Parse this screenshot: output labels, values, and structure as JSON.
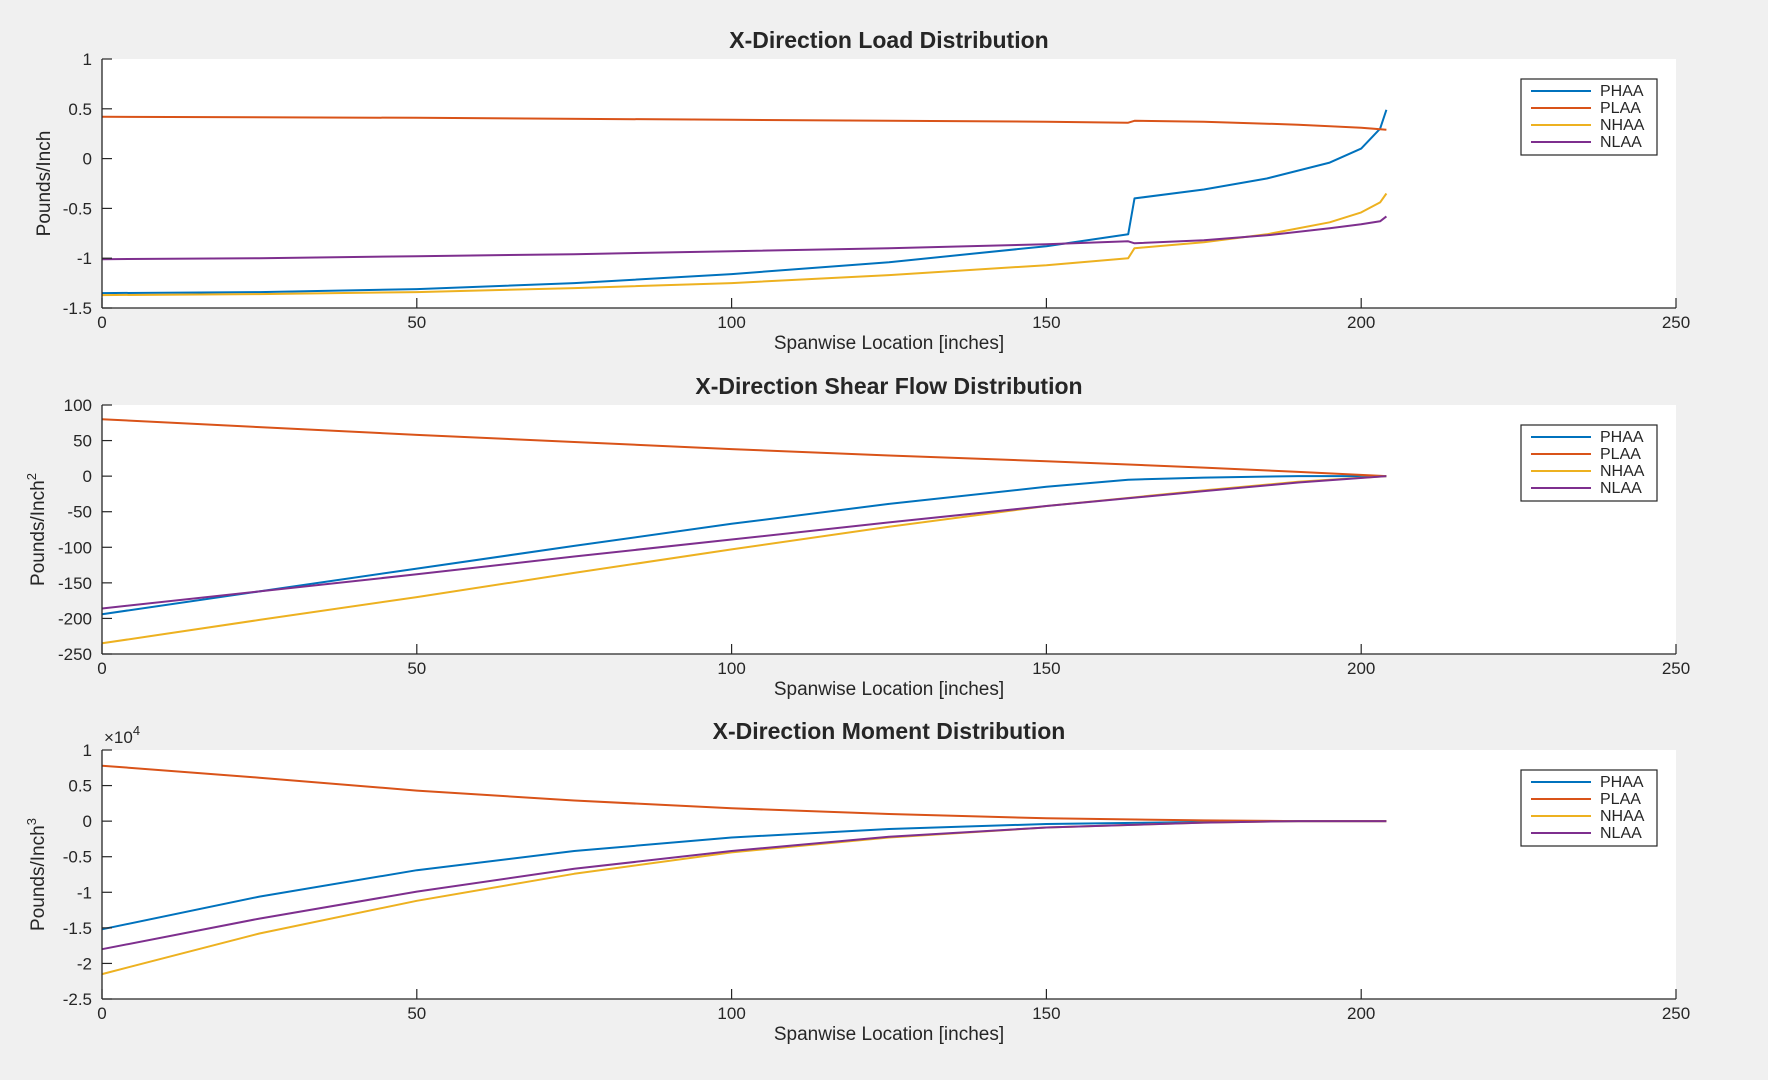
{
  "figure": {
    "background": "#f0f0f0"
  },
  "series_colors": {
    "PHAA": "#0072bd",
    "PLAA": "#d95319",
    "NHAA": "#edb120",
    "NLAA": "#7e2f8e"
  },
  "chart_data": [
    {
      "type": "line",
      "title": "X-Direction Load Distribution",
      "xlabel": "Spanwise Location [inches]",
      "ylabel": "Pounds/Inch",
      "ylabel_sup": "",
      "exponent_label": "",
      "xlim": [
        0,
        250
      ],
      "ylim": [
        -1.5,
        1
      ],
      "xticks": [
        0,
        50,
        100,
        150,
        200,
        250
      ],
      "xtick_labels": [
        "0",
        "50",
        "100",
        "150",
        "200",
        "250"
      ],
      "yticks": [
        -1.5,
        -1,
        -0.5,
        0,
        0.5,
        1
      ],
      "ytick_labels": [
        "-1.5",
        "-1",
        "-0.5",
        "0",
        "0.5",
        "1"
      ],
      "grid": false,
      "legend_position": "top-right",
      "series": [
        {
          "name": "PHAA",
          "x": [
            0,
            25,
            50,
            75,
            100,
            125,
            150,
            163,
            164,
            175,
            185,
            195,
            200,
            203,
            204
          ],
          "y": [
            -1.35,
            -1.34,
            -1.31,
            -1.25,
            -1.16,
            -1.04,
            -0.88,
            -0.76,
            -0.4,
            -0.31,
            -0.2,
            -0.04,
            0.1,
            0.3,
            0.49
          ]
        },
        {
          "name": "PLAA",
          "x": [
            0,
            50,
            100,
            150,
            163,
            164,
            175,
            190,
            200,
            204
          ],
          "y": [
            0.42,
            0.41,
            0.39,
            0.37,
            0.36,
            0.38,
            0.37,
            0.34,
            0.31,
            0.29
          ]
        },
        {
          "name": "NHAA",
          "x": [
            0,
            25,
            50,
            75,
            100,
            125,
            150,
            163,
            164,
            175,
            185,
            195,
            200,
            203,
            204
          ],
          "y": [
            -1.37,
            -1.36,
            -1.34,
            -1.3,
            -1.25,
            -1.17,
            -1.07,
            -1.0,
            -0.9,
            -0.84,
            -0.76,
            -0.64,
            -0.54,
            -0.44,
            -0.35
          ]
        },
        {
          "name": "NLAA",
          "x": [
            0,
            25,
            50,
            75,
            100,
            125,
            150,
            163,
            164,
            175,
            185,
            195,
            200,
            203,
            204
          ],
          "y": [
            -1.01,
            -1.0,
            -0.98,
            -0.96,
            -0.93,
            -0.9,
            -0.86,
            -0.83,
            -0.85,
            -0.82,
            -0.77,
            -0.7,
            -0.66,
            -0.63,
            -0.58
          ]
        }
      ]
    },
    {
      "type": "line",
      "title": "X-Direction Shear Flow Distribution",
      "xlabel": "Spanwise Location [inches]",
      "ylabel": "Pounds/Inch",
      "ylabel_sup": "2",
      "exponent_label": "",
      "xlim": [
        0,
        250
      ],
      "ylim": [
        -250,
        100
      ],
      "xticks": [
        0,
        50,
        100,
        150,
        200,
        250
      ],
      "xtick_labels": [
        "0",
        "50",
        "100",
        "150",
        "200",
        "250"
      ],
      "yticks": [
        -250,
        -200,
        -150,
        -100,
        -50,
        0,
        50,
        100
      ],
      "ytick_labels": [
        "-250",
        "-200",
        "-150",
        "-100",
        "-50",
        "0",
        "50",
        "100"
      ],
      "grid": false,
      "legend_position": "top-right",
      "series": [
        {
          "name": "PHAA",
          "x": [
            0,
            25,
            50,
            75,
            100,
            125,
            150,
            163,
            175,
            190,
            204
          ],
          "y": [
            -194,
            -162,
            -130,
            -98,
            -67,
            -39,
            -15,
            -5,
            -2,
            0,
            0
          ]
        },
        {
          "name": "PLAA",
          "x": [
            0,
            25,
            50,
            75,
            100,
            125,
            150,
            175,
            190,
            204
          ],
          "y": [
            80,
            69,
            58,
            48,
            38,
            29,
            21,
            12,
            6,
            0
          ]
        },
        {
          "name": "NHAA",
          "x": [
            0,
            25,
            50,
            75,
            100,
            125,
            150,
            175,
            190,
            204
          ],
          "y": [
            -235,
            -202,
            -170,
            -136,
            -103,
            -71,
            -42,
            -20,
            -8,
            0
          ]
        },
        {
          "name": "NLAA",
          "x": [
            0,
            25,
            50,
            75,
            100,
            125,
            150,
            175,
            190,
            204
          ],
          "y": [
            -186,
            -162,
            -138,
            -113,
            -89,
            -65,
            -42,
            -21,
            -9,
            0
          ]
        }
      ]
    },
    {
      "type": "line",
      "title": "X-Direction Moment Distribution",
      "xlabel": "Spanwise Location [inches]",
      "ylabel": "Pounds/Inch",
      "ylabel_sup": "3",
      "exponent_label": "×10",
      "exponent_sup": "4",
      "xlim": [
        0,
        250
      ],
      "ylim": [
        -2.5,
        1
      ],
      "xticks": [
        0,
        50,
        100,
        150,
        200,
        250
      ],
      "xtick_labels": [
        "0",
        "50",
        "100",
        "150",
        "200",
        "250"
      ],
      "yticks": [
        -2.5,
        -2,
        -1.5,
        -1,
        -0.5,
        0,
        0.5,
        1
      ],
      "ytick_labels": [
        "-2.5",
        "-2",
        "-1.5",
        "-1",
        "-0.5",
        "0",
        "0.5",
        "1"
      ],
      "grid": false,
      "legend_position": "top-right",
      "series": [
        {
          "name": "PHAA",
          "x": [
            0,
            25,
            50,
            75,
            100,
            125,
            150,
            175,
            190,
            204
          ],
          "y": [
            -1.52,
            -1.06,
            -0.69,
            -0.42,
            -0.23,
            -0.11,
            -0.04,
            -0.01,
            0,
            0
          ]
        },
        {
          "name": "PLAA",
          "x": [
            0,
            25,
            50,
            75,
            100,
            125,
            150,
            175,
            190,
            204
          ],
          "y": [
            0.78,
            0.61,
            0.43,
            0.29,
            0.18,
            0.1,
            0.04,
            0.01,
            0,
            0
          ]
        },
        {
          "name": "NHAA",
          "x": [
            0,
            25,
            50,
            75,
            100,
            125,
            150,
            175,
            190,
            204
          ],
          "y": [
            -2.15,
            -1.58,
            -1.12,
            -0.74,
            -0.44,
            -0.23,
            -0.09,
            -0.02,
            0,
            0
          ]
        },
        {
          "name": "NLAA",
          "x": [
            0,
            25,
            50,
            75,
            100,
            125,
            150,
            175,
            190,
            204
          ],
          "y": [
            -1.8,
            -1.37,
            -0.99,
            -0.67,
            -0.42,
            -0.22,
            -0.09,
            -0.02,
            0,
            0
          ]
        }
      ]
    }
  ]
}
